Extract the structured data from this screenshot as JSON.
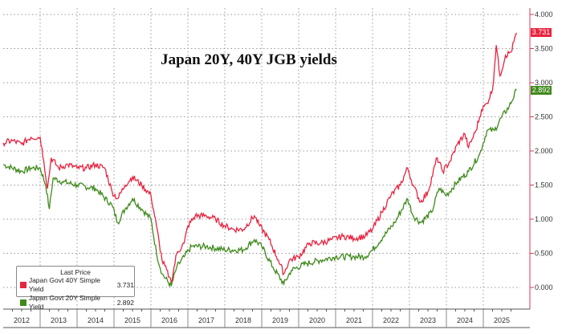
{
  "chart_data": {
    "type": "line",
    "title": "Japan 20Y, 40Y JGB yields",
    "xlabel": "",
    "ylabel": "",
    "ylim": [
      -0.25,
      4.1
    ],
    "xlim": [
      2012,
      2026
    ],
    "y_ticks": [
      "0.000",
      "0.500",
      "1.000",
      "1.500",
      "2.000",
      "2.500",
      "3.000",
      "3.500",
      "4.000"
    ],
    "x_ticks": [
      "2012",
      "2013",
      "2014",
      "2015",
      "2016",
      "2017",
      "2018",
      "2019",
      "2020",
      "2021",
      "2022",
      "2023",
      "2024",
      "2025"
    ],
    "grid": true,
    "legend": {
      "title": "Last Price",
      "placement": "bottom-left"
    },
    "series": [
      {
        "name": "Japan Govt 40Y Simple Yield",
        "last": "3.731",
        "color": "#e8233f",
        "x": [
          2012.0,
          2012.25,
          2012.5,
          2012.75,
          2013.0,
          2013.1,
          2013.2,
          2013.3,
          2013.5,
          2013.75,
          2014.0,
          2014.25,
          2014.5,
          2014.75,
          2014.95,
          2015.1,
          2015.3,
          2015.5,
          2015.75,
          2016.0,
          2016.15,
          2016.3,
          2016.5,
          2016.55,
          2016.7,
          2016.9,
          2017.0,
          2017.2,
          2017.5,
          2017.75,
          2018.0,
          2018.25,
          2018.5,
          2018.8,
          2018.95,
          2019.2,
          2019.45,
          2019.6,
          2019.75,
          2020.0,
          2020.3,
          2020.6,
          2020.9,
          2021.2,
          2021.5,
          2021.8,
          2022.0,
          2022.25,
          2022.5,
          2022.75,
          2022.95,
          2023.1,
          2023.3,
          2023.5,
          2023.75,
          2023.9,
          2024.1,
          2024.3,
          2024.5,
          2024.6,
          2024.8,
          2024.95,
          2025.1,
          2025.25,
          2025.35,
          2025.45,
          2025.6,
          2025.75,
          2025.9
        ],
        "y": [
          2.12,
          2.15,
          2.1,
          2.2,
          2.2,
          1.85,
          1.45,
          1.9,
          1.75,
          1.8,
          1.75,
          1.75,
          1.8,
          1.75,
          1.4,
          1.3,
          1.5,
          1.62,
          1.5,
          1.35,
          0.9,
          0.4,
          0.15,
          0.08,
          0.5,
          0.65,
          0.9,
          1.05,
          1.05,
          1.0,
          0.9,
          0.85,
          0.85,
          1.05,
          0.9,
          0.7,
          0.4,
          0.2,
          0.4,
          0.45,
          0.65,
          0.65,
          0.7,
          0.75,
          0.72,
          0.75,
          0.85,
          1.1,
          1.35,
          1.5,
          1.75,
          1.5,
          1.25,
          1.4,
          1.9,
          1.7,
          1.85,
          2.1,
          2.25,
          2.05,
          2.3,
          2.6,
          2.7,
          2.9,
          3.55,
          3.1,
          3.4,
          3.45,
          3.731
        ]
      },
      {
        "name": "Japan Govt 20Y Simple Yield",
        "last": "2.892",
        "color": "#3f8a1c",
        "x": [
          2012.0,
          2012.5,
          2012.75,
          2013.0,
          2013.15,
          2013.25,
          2013.35,
          2013.6,
          2014.0,
          2014.5,
          2014.95,
          2015.1,
          2015.3,
          2015.5,
          2015.75,
          2016.0,
          2016.15,
          2016.3,
          2016.55,
          2016.7,
          2016.9,
          2017.1,
          2017.5,
          2018.0,
          2018.5,
          2018.8,
          2019.0,
          2019.3,
          2019.6,
          2019.8,
          2020.2,
          2020.6,
          2021.0,
          2021.5,
          2021.8,
          2022.0,
          2022.3,
          2022.6,
          2022.95,
          2023.1,
          2023.3,
          2023.6,
          2023.8,
          2024.0,
          2024.3,
          2024.6,
          2024.9,
          2025.1,
          2025.3,
          2025.5,
          2025.7,
          2025.9
        ],
        "y": [
          1.8,
          1.7,
          1.75,
          1.75,
          1.5,
          1.15,
          1.6,
          1.55,
          1.5,
          1.45,
          1.2,
          0.95,
          1.15,
          1.3,
          1.15,
          1.0,
          0.5,
          0.2,
          0.02,
          0.3,
          0.45,
          0.6,
          0.6,
          0.55,
          0.55,
          0.7,
          0.6,
          0.3,
          0.05,
          0.25,
          0.35,
          0.4,
          0.45,
          0.45,
          0.45,
          0.55,
          0.75,
          0.95,
          1.3,
          1.05,
          0.95,
          1.1,
          1.45,
          1.35,
          1.55,
          1.7,
          1.95,
          2.3,
          2.3,
          2.5,
          2.65,
          2.892
        ]
      }
    ]
  }
}
